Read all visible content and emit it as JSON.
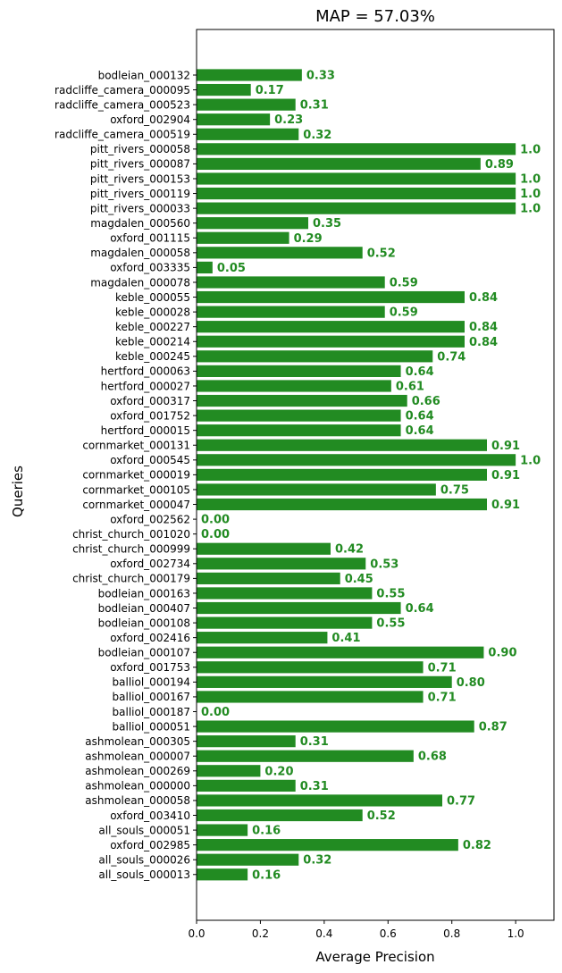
{
  "chart_data": {
    "type": "bar",
    "orientation": "horizontal",
    "title": "MAP = 57.03%",
    "xlabel": "Average Precision",
    "ylabel": "Queries",
    "xlim": [
      0,
      1.12
    ],
    "xticks": [
      "0.0",
      "0.2",
      "0.4",
      "0.6",
      "0.8",
      "1.0"
    ],
    "grid": false,
    "bar_color": "#228b22",
    "label_color": "#228b22",
    "categories": [
      "bodleian_000132",
      "radcliffe_camera_000095",
      "radcliffe_camera_000523",
      "oxford_002904",
      "radcliffe_camera_000519",
      "pitt_rivers_000058",
      "pitt_rivers_000087",
      "pitt_rivers_000153",
      "pitt_rivers_000119",
      "pitt_rivers_000033",
      "magdalen_000560",
      "oxford_001115",
      "magdalen_000058",
      "oxford_003335",
      "magdalen_000078",
      "keble_000055",
      "keble_000028",
      "keble_000227",
      "keble_000214",
      "keble_000245",
      "hertford_000063",
      "hertford_000027",
      "oxford_000317",
      "oxford_001752",
      "hertford_000015",
      "cornmarket_000131",
      "oxford_000545",
      "cornmarket_000019",
      "cornmarket_000105",
      "cornmarket_000047",
      "oxford_002562",
      "christ_church_001020",
      "christ_church_000999",
      "oxford_002734",
      "christ_church_000179",
      "bodleian_000163",
      "bodleian_000407",
      "bodleian_000108",
      "oxford_002416",
      "bodleian_000107",
      "oxford_001753",
      "balliol_000194",
      "balliol_000167",
      "balliol_000187",
      "balliol_000051",
      "ashmolean_000305",
      "ashmolean_000007",
      "ashmolean_000269",
      "ashmolean_000000",
      "ashmolean_000058",
      "oxford_003410",
      "all_souls_000051",
      "oxford_002985",
      "all_souls_000026",
      "all_souls_000013"
    ],
    "values": [
      0.33,
      0.17,
      0.31,
      0.23,
      0.32,
      1.0,
      0.89,
      1.0,
      1.0,
      1.0,
      0.35,
      0.29,
      0.52,
      0.05,
      0.59,
      0.84,
      0.59,
      0.84,
      0.84,
      0.74,
      0.64,
      0.61,
      0.66,
      0.64,
      0.64,
      0.91,
      1.0,
      0.91,
      0.75,
      0.91,
      0.0,
      0.0,
      0.42,
      0.53,
      0.45,
      0.55,
      0.64,
      0.55,
      0.41,
      0.9,
      0.71,
      0.8,
      0.71,
      0.0,
      0.87,
      0.31,
      0.68,
      0.2,
      0.31,
      0.77,
      0.52,
      0.16,
      0.82,
      0.32,
      0.16
    ],
    "value_labels": [
      "0.33",
      "0.17",
      "0.31",
      "0.23",
      "0.32",
      "1.0",
      "0.89",
      "1.0",
      "1.0",
      "1.0",
      "0.35",
      "0.29",
      "0.52",
      "0.05",
      "0.59",
      "0.84",
      "0.59",
      "0.84",
      "0.84",
      "0.74",
      "0.64",
      "0.61",
      "0.66",
      "0.64",
      "0.64",
      "0.91",
      "1.0",
      "0.91",
      "0.75",
      "0.91",
      "0.00",
      "0.00",
      "0.42",
      "0.53",
      "0.45",
      "0.55",
      "0.64",
      "0.55",
      "0.41",
      "0.90",
      "0.71",
      "0.80",
      "0.71",
      "0.00",
      "0.87",
      "0.31",
      "0.68",
      "0.20",
      "0.31",
      "0.77",
      "0.52",
      "0.16",
      "0.82",
      "0.32",
      "0.16"
    ]
  }
}
